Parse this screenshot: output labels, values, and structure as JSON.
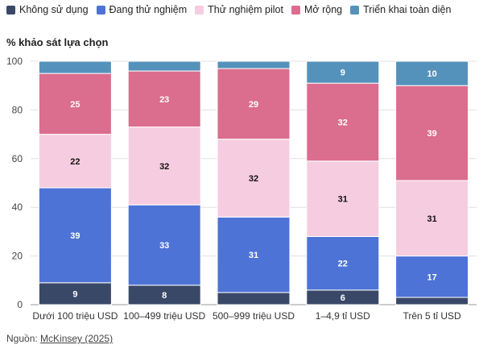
{
  "chart_data": {
    "type": "bar",
    "stacked": true,
    "title": "% khảo sát lựa chọn",
    "xlabel": "",
    "ylabel": "% khảo sát lựa chọn",
    "ylim": [
      0,
      100
    ],
    "yticks": [
      0,
      20,
      40,
      60,
      80,
      100
    ],
    "categories": [
      "Dưới 100 triệu USD",
      "100–499 triệu USD",
      "500–999 triệu USD",
      "1–4,9 tỉ USD",
      "Trên 5 tỉ USD"
    ],
    "series": [
      {
        "name": "Không sử dụng",
        "color": "#3a4868",
        "values": [
          9,
          8,
          5,
          6,
          3
        ],
        "labels": [
          "9",
          "8",
          "",
          "6",
          ""
        ],
        "label_color": "#ffffff"
      },
      {
        "name": "Đang thử nghiệm",
        "color": "#4d73d6",
        "values": [
          39,
          33,
          31,
          22,
          17
        ],
        "labels": [
          "39",
          "33",
          "31",
          "22",
          "17"
        ],
        "label_color": "#ffffff"
      },
      {
        "name": "Thử nghiệm pilot",
        "color": "#f6cde0",
        "values": [
          22,
          32,
          32,
          31,
          31
        ],
        "labels": [
          "22",
          "32",
          "32",
          "31",
          "31"
        ],
        "label_color": "#111111"
      },
      {
        "name": "Mở rộng",
        "color": "#db6d8e",
        "values": [
          25,
          23,
          29,
          32,
          39
        ],
        "labels": [
          "25",
          "23",
          "29",
          "32",
          "39"
        ],
        "label_color": "#ffffff"
      },
      {
        "name": "Triển khai toàn diện",
        "color": "#5592bb",
        "values": [
          5,
          4,
          3,
          9,
          10
        ],
        "labels": [
          "",
          "",
          "",
          "9",
          "10"
        ],
        "label_color": "#ffffff"
      }
    ],
    "grid": true,
    "legend_position": "top"
  },
  "source": {
    "prefix": "Nguồn: ",
    "link_text": "McKinsey (2025)"
  }
}
